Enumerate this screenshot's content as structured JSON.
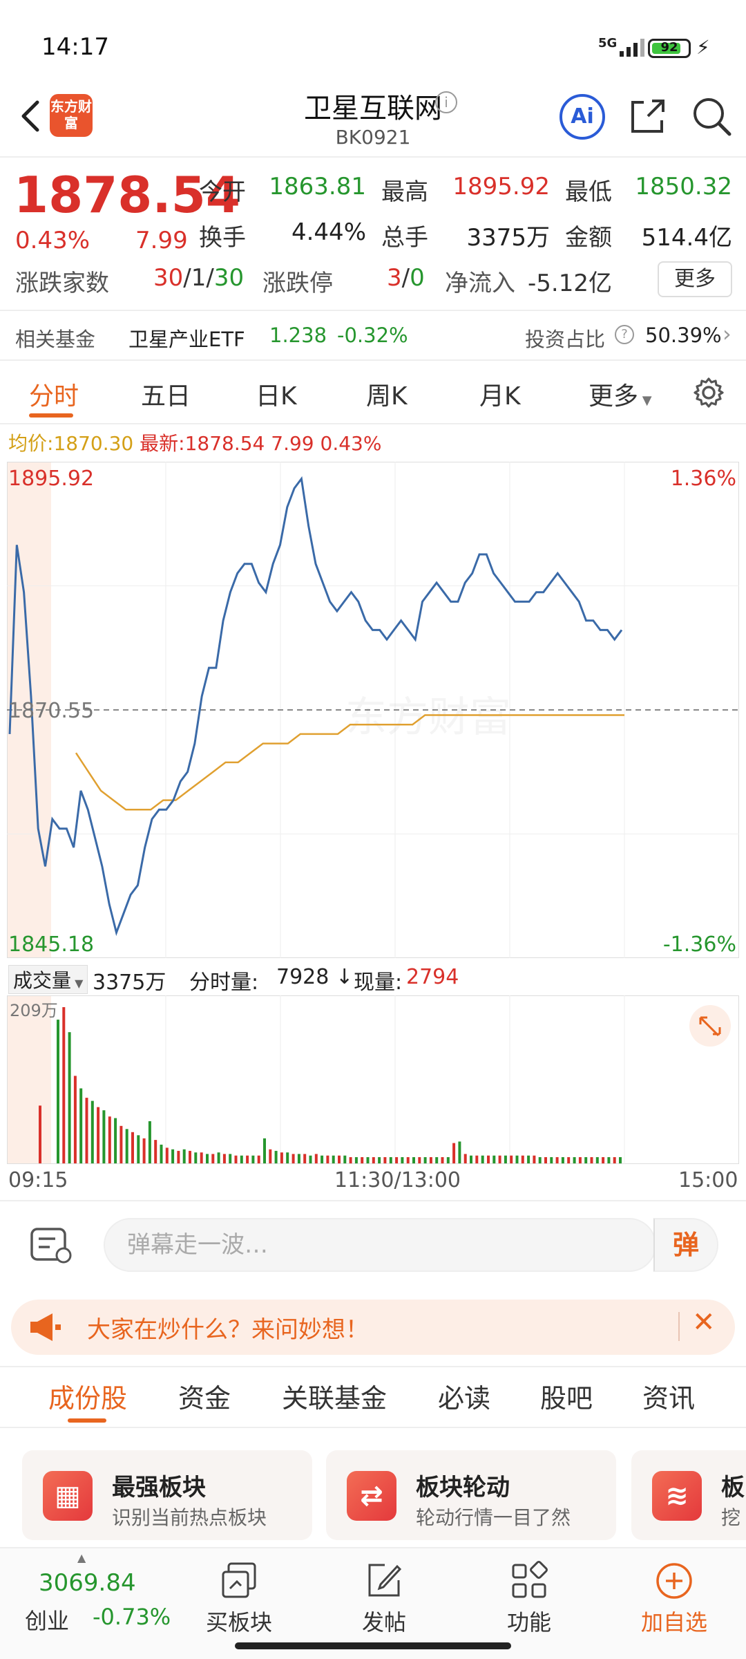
{
  "status": {
    "time": "14:17",
    "network": "5G",
    "battery": "92"
  },
  "header": {
    "title": "卫星互联网",
    "code": "BK0921",
    "logo_text": "东方财富",
    "ai_label": "Ai"
  },
  "quote": {
    "price": "1878.54",
    "change_pct": "0.43%",
    "change": "7.99",
    "open_label": "今开",
    "open": "1863.81",
    "high_label": "最高",
    "high": "1895.92",
    "low_label": "最低",
    "low": "1850.32",
    "turnover_label": "换手",
    "turnover": "4.44%",
    "volume_label": "总手",
    "volume": "3375万",
    "amount_label": "金额",
    "amount": "514.4亿",
    "updown_label": "涨跌家数",
    "up": "30",
    "flat": "1",
    "down": "30",
    "limit_label": "涨跌停",
    "limit_up": "3",
    "limit_down": "0",
    "netflow_label": "净流入",
    "netflow": "-5.12亿",
    "more_label": "更多"
  },
  "fund": {
    "label": "相关基金",
    "name": "卫星产业ETF",
    "price": "1.238",
    "pct": "-0.32%",
    "ratio_label": "投资占比",
    "ratio": "50.39%"
  },
  "chart_tabs": [
    "分时",
    "五日",
    "日K",
    "周K",
    "月K",
    "更多"
  ],
  "avg_row": {
    "avg_label": "均价:",
    "avg": "1870.30",
    "latest_label": "最新:",
    "latest": "1878.54",
    "chg": "7.99",
    "pct": "0.43%"
  },
  "chart_data": {
    "type": "line",
    "y_max_label": "1895.92",
    "y_mid_label": "1870.55",
    "y_min_label": "1845.18",
    "pct_max_label": "1.36%",
    "pct_min_label": "-1.36%",
    "ylim": [
      1845.18,
      1895.92
    ],
    "x_labels": [
      "09:15",
      "11:30/13:00",
      "15:00"
    ],
    "series": [
      {
        "values": [
          1868,
          1888,
          1883,
          1872,
          1858,
          1854,
          1859,
          1858,
          1858,
          1856,
          1862,
          1860,
          1857,
          1854,
          1850,
          1847,
          1849,
          1851,
          1852,
          1856,
          1859,
          1860,
          1860,
          1861,
          1863,
          1864,
          1867,
          1872,
          1875,
          1875,
          1880,
          1883,
          1885,
          1886,
          1886,
          1884,
          1883,
          1886,
          1888,
          1892,
          1894,
          1895,
          1890,
          1886,
          1884,
          1882,
          1881,
          1882,
          1883,
          1882,
          1880,
          1879,
          1879,
          1878,
          1879,
          1880,
          1879,
          1878,
          1882,
          1883,
          1884,
          1883,
          1882,
          1882,
          1884,
          1885,
          1887,
          1887,
          1885,
          1884,
          1883,
          1882,
          1882,
          1882,
          1883,
          1883,
          1884,
          1885,
          1884,
          1883,
          1882,
          1880,
          1880,
          1879,
          1879,
          1878,
          1879
        ]
      },
      {
        "values": [
          1866,
          1864,
          1862,
          1861,
          1860,
          1860,
          1860,
          1861,
          1861,
          1862,
          1863,
          1864,
          1865,
          1865,
          1866,
          1867,
          1867,
          1867,
          1868,
          1868,
          1868,
          1868,
          1869,
          1869,
          1869,
          1869,
          1869,
          1869,
          1870,
          1870,
          1870,
          1870,
          1870,
          1870,
          1870,
          1870,
          1870,
          1870,
          1870,
          1870,
          1870,
          1870,
          1870,
          1870,
          1870
        ]
      }
    ]
  },
  "volume": {
    "label": "成交量",
    "total": "3375万",
    "tick_label": "分时量:",
    "tick": "7928",
    "now_label": "现量:",
    "now": "2794",
    "max_label": "209万",
    "values": [
      0.37,
      0.92,
      1.0,
      0.84,
      0.56,
      0.48,
      0.42,
      0.4,
      0.36,
      0.34,
      0.3,
      0.29,
      0.24,
      0.22,
      0.2,
      0.18,
      0.16,
      0.27,
      0.15,
      0.12,
      0.1,
      0.09,
      0.08,
      0.09,
      0.08,
      0.07,
      0.07,
      0.06,
      0.06,
      0.07,
      0.06,
      0.06,
      0.05,
      0.05,
      0.05,
      0.05,
      0.05,
      0.16,
      0.09,
      0.08,
      0.07,
      0.07,
      0.06,
      0.06,
      0.06,
      0.05,
      0.06,
      0.05,
      0.05,
      0.05,
      0.05,
      0.05,
      0.04,
      0.04,
      0.04,
      0.04,
      0.04,
      0.04,
      0.04,
      0.04,
      0.04,
      0.04,
      0.04,
      0.04,
      0.04,
      0.04,
      0.04,
      0.04,
      0.04,
      0.04,
      0.13,
      0.14,
      0.06,
      0.05,
      0.05,
      0.05,
      0.05,
      0.05,
      0.05,
      0.05,
      0.05,
      0.05,
      0.05,
      0.05,
      0.05,
      0.04,
      0.04,
      0.04,
      0.04,
      0.04,
      0.04,
      0.04,
      0.04,
      0.04,
      0.04,
      0.04,
      0.04,
      0.04,
      0.04,
      0.04
    ]
  },
  "comment": {
    "placeholder": "弹幕走一波…",
    "dan_label": "弹"
  },
  "banner": {
    "text": "大家在炒什么？来问妙想！"
  },
  "sub_tabs": [
    "成份股",
    "资金",
    "关联基金",
    "必读",
    "股吧",
    "资讯"
  ],
  "cards": [
    {
      "title": "最强板块",
      "sub": "识别当前热点板块"
    },
    {
      "title": "板块轮动",
      "sub": "轮动行情一目了然"
    },
    {
      "title": "板",
      "sub": "挖"
    }
  ],
  "bottom": {
    "index_value": "3069.84",
    "index_name": "创业",
    "index_pct": "-0.73%",
    "buy_label": "买板块",
    "post_label": "发帖",
    "func_label": "功能",
    "add_label": "加自选"
  }
}
